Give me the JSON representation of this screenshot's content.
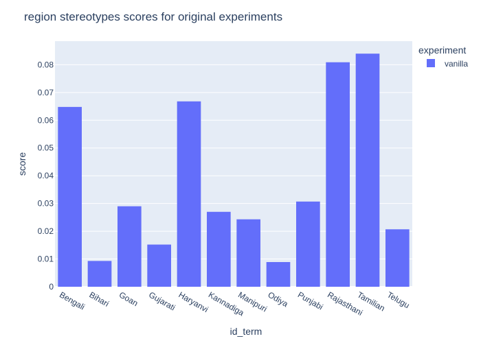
{
  "chart_data": {
    "type": "bar",
    "title": "region stereotypes scores for original experiments",
    "xlabel": "id_term",
    "ylabel": "score",
    "categories": [
      "Bengali",
      "Bihari",
      "Goan",
      "Gujarati",
      "Haryanvi",
      "Kannadiga",
      "Manipuri",
      "Odiya",
      "Punjabi",
      "Rajasthani",
      "Tamilian",
      "Telugu"
    ],
    "series": [
      {
        "name": "vanilla",
        "values": [
          0.0648,
          0.0093,
          0.029,
          0.0152,
          0.0668,
          0.027,
          0.0243,
          0.0089,
          0.0307,
          0.0809,
          0.084,
          0.0207
        ]
      }
    ],
    "ylim": [
      0,
      0.0885
    ],
    "yticks": [
      0,
      0.01,
      0.02,
      0.03,
      0.04,
      0.05,
      0.06,
      0.07,
      0.08
    ],
    "ytick_labels": [
      "0",
      "0.01",
      "0.02",
      "0.03",
      "0.04",
      "0.05",
      "0.06",
      "0.07",
      "0.08"
    ],
    "legend_title": "experiment",
    "legend_position": "top-right",
    "grid": true,
    "colors": {
      "bar": "#636efa",
      "plot_bg": "#e5ecf6",
      "grid": "#ffffff",
      "text": "#2a3f5f"
    }
  }
}
